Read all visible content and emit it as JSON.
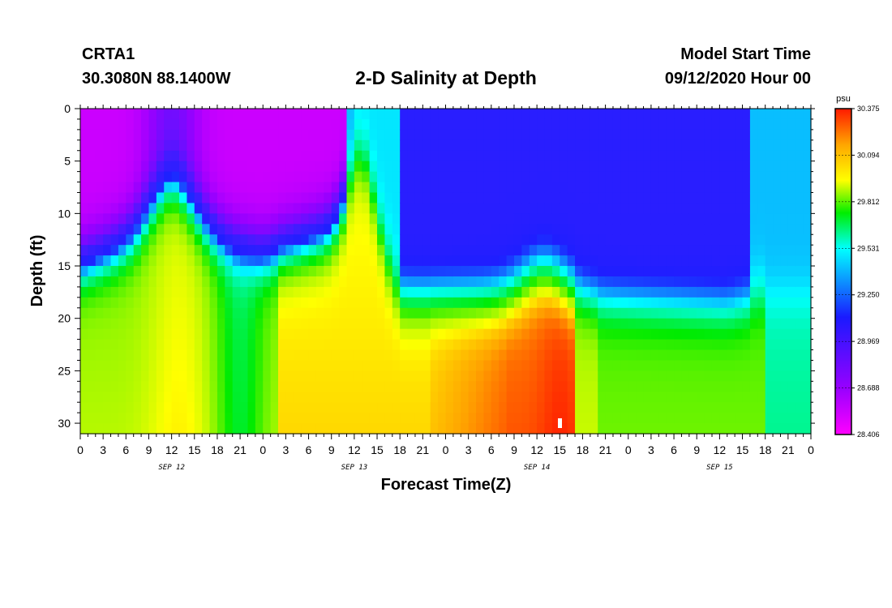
{
  "header": {
    "station": "CRTA1",
    "coords": "30.3080N 88.1400W",
    "title": "2-D Salinity at Depth",
    "model_start_label": "Model Start Time",
    "model_start_value": "09/12/2020 Hour 00"
  },
  "chart_data": {
    "type": "heatmap",
    "title": "2-D Salinity at Depth",
    "xlabel": "Forecast Time(Z)",
    "ylabel": "Depth (ft)",
    "x_ticks": [
      "0",
      "3",
      "6",
      "9",
      "12",
      "15",
      "18",
      "21",
      "0",
      "3",
      "6",
      "9",
      "12",
      "15",
      "18",
      "21",
      "0",
      "3",
      "6",
      "9",
      "12",
      "15",
      "18",
      "21",
      "0",
      "3",
      "6",
      "9",
      "12",
      "15",
      "18",
      "21",
      "0"
    ],
    "date_labels": [
      "SEP 12",
      "SEP 13",
      "SEP 14",
      "SEP 15"
    ],
    "xlim_hours": [
      0,
      96
    ],
    "y_ticks": [
      "0",
      "5",
      "10",
      "15",
      "20",
      "25",
      "30"
    ],
    "ylim_ft": [
      0,
      31
    ],
    "y_inverted": true,
    "colorbar": {
      "unit": "psu",
      "min": 28.406,
      "max": 30.375,
      "labels": [
        "30.375",
        "30.094",
        "29.812",
        "29.531",
        "29.250",
        "28.969",
        "28.688",
        "28.406"
      ],
      "colors": [
        "#ff00ff",
        "#9900ff",
        "#1a1aff",
        "#00ffff",
        "#00ee00",
        "#ffff00",
        "#ffa500",
        "#ff1a00"
      ]
    },
    "grid": false,
    "field_description_hours_depth": {
      "fresh_upper_layer_depth_ft": [
        [
          0,
          12
        ],
        [
          12,
          8
        ],
        [
          24,
          11
        ],
        [
          37,
          8
        ],
        [
          42,
          15
        ],
        [
          60,
          15
        ],
        [
          85,
          16
        ],
        [
          90,
          15
        ],
        [
          96,
          15
        ]
      ],
      "salinity_samples_psu": [
        {
          "hour": 1,
          "depth": 2,
          "value": 28.45
        },
        {
          "hour": 12,
          "depth": 15,
          "value": 30.0
        },
        {
          "hour": 21,
          "depth": 22,
          "value": 29.9
        },
        {
          "hour": 42,
          "depth": 25,
          "value": 30.15
        },
        {
          "hour": 60,
          "depth": 2,
          "value": 29.2
        },
        {
          "hour": 63,
          "depth": 27,
          "value": 30.33
        },
        {
          "hour": 84,
          "depth": 26,
          "value": 29.95
        },
        {
          "hour": 94,
          "depth": 25,
          "value": 29.7
        }
      ]
    }
  }
}
